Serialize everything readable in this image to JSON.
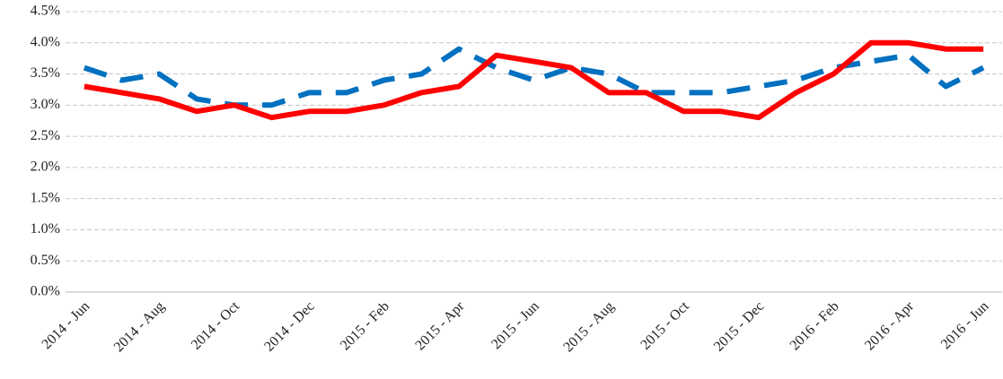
{
  "chart_data": {
    "type": "line",
    "categories": [
      "2014 - Jun",
      null,
      "2014 - Aug",
      null,
      "2014 - Oct",
      null,
      "2014 - Dec",
      null,
      "2015 - Feb",
      null,
      "2015 - Apr",
      null,
      "2015 - Jun",
      null,
      "2015 - Aug",
      null,
      "2015 - Oct",
      null,
      "2015 - Dec",
      null,
      "2016 - Feb",
      null,
      "2016 - Apr",
      null,
      "2016 - Jun"
    ],
    "series": [
      {
        "color": "#0070c0",
        "line_style": "dashed",
        "values": [
          3.6,
          3.4,
          3.5,
          3.1,
          3.0,
          3.0,
          3.2,
          3.2,
          3.4,
          3.5,
          3.9,
          3.6,
          3.4,
          3.6,
          3.5,
          3.2,
          3.2,
          3.2,
          3.3,
          3.4,
          3.6,
          3.7,
          3.8,
          3.3,
          3.6
        ]
      },
      {
        "color": "#ff0000",
        "line_style": "solid",
        "values": [
          3.3,
          3.2,
          3.1,
          2.9,
          3.0,
          2.8,
          2.9,
          2.9,
          3.0,
          3.2,
          3.3,
          3.8,
          3.7,
          3.6,
          3.2,
          3.2,
          2.9,
          2.9,
          2.8,
          3.2,
          3.5,
          4.0,
          4.0,
          3.9,
          3.9
        ]
      }
    ],
    "ylim": [
      0,
      4.5
    ],
    "yticks": [
      {
        "value": 0,
        "label": "0.0%"
      },
      {
        "value": 0.5,
        "label": "0.5%"
      },
      {
        "value": 1,
        "label": "1.0%"
      },
      {
        "value": 1.5,
        "label": "1.5%"
      },
      {
        "value": 2,
        "label": "2.0%"
      },
      {
        "value": 2.5,
        "label": "2.5%"
      },
      {
        "value": 3,
        "label": "3.0%"
      },
      {
        "value": 3.5,
        "label": "3.5%"
      },
      {
        "value": 4,
        "label": "4.0%"
      },
      {
        "value": 4.5,
        "label": "4.5%"
      }
    ],
    "grid": true
  }
}
